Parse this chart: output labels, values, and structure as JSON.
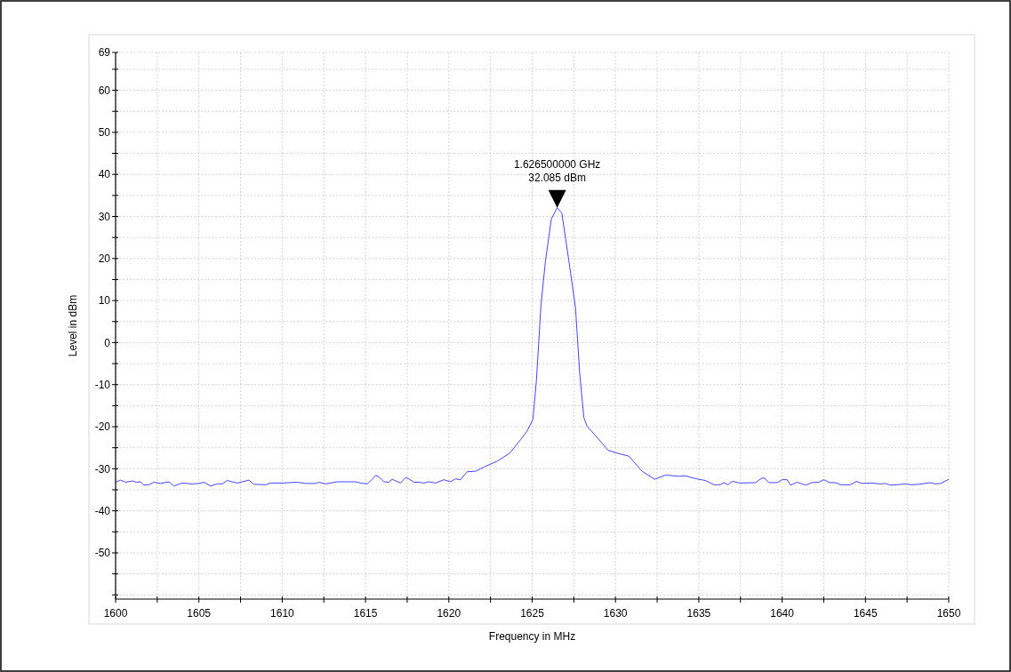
{
  "chart_data": {
    "type": "line",
    "xlabel": "Frequency in MHz",
    "ylabel": "Level in dBm",
    "xlim": [
      1600,
      1650
    ],
    "ylim": [
      -61,
      69
    ],
    "grid": true,
    "xticks": [
      1600,
      {
        "value": 1602.5,
        "label": null
      },
      1605,
      {
        "value": 1607.5,
        "label": null
      },
      1610,
      {
        "value": 1612.5,
        "label": null
      },
      1615,
      {
        "value": 1617.5,
        "label": null
      },
      1620,
      {
        "value": 1622.5,
        "label": null
      },
      1625,
      {
        "value": 1627.5,
        "label": null
      },
      1630,
      {
        "value": 1632.5,
        "label": null
      },
      1635,
      {
        "value": 1637.5,
        "label": null
      },
      1640,
      {
        "value": 1642.5,
        "label": null
      },
      1645,
      {
        "value": 1647.5,
        "label": null
      },
      1650
    ],
    "yticks": [
      {
        "value": -60,
        "label": null
      },
      {
        "value": -55,
        "label": null
      },
      -50,
      {
        "value": -45,
        "label": null
      },
      -40,
      {
        "value": -35,
        "label": null
      },
      -30,
      {
        "value": -25,
        "label": null
      },
      -20,
      {
        "value": -15,
        "label": null
      },
      -10,
      {
        "value": -5,
        "label": null
      },
      0,
      {
        "value": 5,
        "label": null
      },
      10,
      {
        "value": 15,
        "label": null
      },
      20,
      {
        "value": 25,
        "label": null
      },
      30,
      {
        "value": 35,
        "label": null
      },
      40,
      {
        "value": 45,
        "label": null
      },
      50,
      {
        "value": 55,
        "label": null
      },
      60,
      {
        "value": 65,
        "label": null
      },
      69
    ],
    "annotations": [
      {
        "text": "1.626500000 GHz\n32.085 dBm",
        "x": 1626.5,
        "y": 32.085
      }
    ],
    "series": [
      {
        "color": "#4444ff",
        "x": [
          1600,
          1600.3,
          1600.6,
          1601,
          1601.25,
          1601.5,
          1601.7,
          1602,
          1602.3,
          1602.7,
          1603.2,
          1603.5,
          1604,
          1604.6,
          1605,
          1605.3,
          1605.7,
          1606.1,
          1606.4,
          1606.7,
          1607.3,
          1608,
          1608.3,
          1609,
          1609.3,
          1610,
          1610.9,
          1611.4,
          1612,
          1612.2,
          1612.6,
          1613.3,
          1614.4,
          1614.7,
          1615.1,
          1615.4,
          1615.6,
          1615.8,
          1616.1,
          1616.4,
          1616.6,
          1617.1,
          1617.4,
          1617.6,
          1617.9,
          1618.2,
          1618.5,
          1618.8,
          1619.2,
          1619.7,
          1620.1,
          1620.4,
          1620.7,
          1621.1,
          1621.6,
          1622.1,
          1622.9,
          1623.65,
          1624.3,
          1624.7,
          1625.05,
          1625.26,
          1625.53,
          1625.8,
          1626.15,
          1626.5,
          1626.78,
          1627.2,
          1627.6,
          1627.85,
          1628.1,
          1628.3,
          1628.8,
          1629.55,
          1630.1,
          1630.8,
          1631.1,
          1631.6,
          1632.35,
          1633,
          1633.8,
          1634.2,
          1634.75,
          1635.4,
          1635.9,
          1636.3,
          1636.5,
          1636.75,
          1637,
          1637.5,
          1638.4,
          1638.75,
          1638.95,
          1639.2,
          1639.7,
          1640,
          1640.3,
          1640.5,
          1640.9,
          1641.4,
          1641.8,
          1642.2,
          1642.5,
          1642.85,
          1643.2,
          1643.5,
          1644.1,
          1644.45,
          1644.8,
          1645.3,
          1645.9,
          1646.2,
          1646.5,
          1646.9,
          1647.4,
          1647.75,
          1648.2,
          1648.9,
          1649.2,
          1649.5,
          1650
        ],
        "values": [
          -33.2,
          -32.7,
          -33.2,
          -32.9,
          -33.2,
          -33.1,
          -33.9,
          -33.8,
          -33.2,
          -33.5,
          -33.1,
          -34.1,
          -33.4,
          -33.6,
          -33.5,
          -33.2,
          -34.1,
          -33.6,
          -33.6,
          -32.8,
          -33.4,
          -32.7,
          -33.7,
          -33.8,
          -33.4,
          -33.4,
          -33.2,
          -33.5,
          -33.5,
          -33.2,
          -33.6,
          -33.1,
          -33.1,
          -33.4,
          -33.6,
          -32.5,
          -31.6,
          -31.9,
          -33.1,
          -33.2,
          -32.5,
          -33.4,
          -32.1,
          -32.4,
          -33.2,
          -33.2,
          -33.4,
          -33.1,
          -33.4,
          -32.6,
          -33.1,
          -32.4,
          -32.6,
          -30.7,
          -30.6,
          -29.6,
          -28.2,
          -26.3,
          -23.1,
          -21.0,
          -18.2,
          -8.7,
          9.0,
          19.5,
          29.4,
          32.085,
          30.8,
          19.5,
          8.3,
          -7.2,
          -17.8,
          -19.9,
          -22.1,
          -25.6,
          -26.3,
          -27.0,
          -28.4,
          -30.6,
          -32.5,
          -31.5,
          -31.8,
          -31.7,
          -32.3,
          -32.8,
          -33.8,
          -33.8,
          -33.3,
          -33.8,
          -33.0,
          -33.4,
          -33.3,
          -32.3,
          -32.2,
          -33.3,
          -33.3,
          -32.6,
          -32.6,
          -33.9,
          -33.2,
          -33.9,
          -33.3,
          -33.2,
          -32.6,
          -33.3,
          -33.3,
          -33.8,
          -33.8,
          -33.0,
          -33.5,
          -33.4,
          -33.6,
          -33.5,
          -33.9,
          -33.8,
          -33.6,
          -33.8,
          -33.7,
          -33.3,
          -33.6,
          -33.5,
          -32.5
        ]
      }
    ]
  }
}
